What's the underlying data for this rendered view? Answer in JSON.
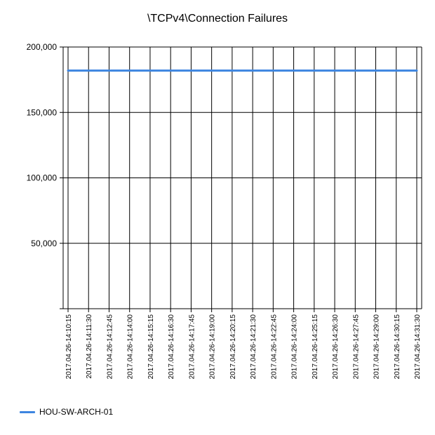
{
  "chart_data": {
    "type": "line",
    "title": "\\TCPv4\\Connection Failures",
    "xlabel": "",
    "ylabel": "",
    "ylim": [
      0,
      200000
    ],
    "yticks": [
      0,
      50000,
      100000,
      150000,
      200000
    ],
    "ytick_labels": [
      "",
      "50,000",
      "100,000",
      "150,000",
      "200,000"
    ],
    "x": [
      "2017.04.26-14:10:15",
      "2017.04.26-14:11:30",
      "2017.04.26-14:12:45",
      "2017.04.26-14:14:00",
      "2017.04.26-14:15:15",
      "2017.04.26-14:16:30",
      "2017.04.26-14:17:45",
      "2017.04.26-14:19:00",
      "2017.04.26-14:20:15",
      "2017.04.26-14:21:30",
      "2017.04.26-14:22:45",
      "2017.04.26-14:24:00",
      "2017.04.26-14:25:15",
      "2017.04.26-14:26:30",
      "2017.04.26-14:27:45",
      "2017.04.26-14:29:00",
      "2017.04.26-14:30:15",
      "2017.04.26-14:31:30"
    ],
    "series": [
      {
        "name": "HOU-SW-ARCH-01",
        "color": "#3d85e0",
        "values": [
          182000,
          182000,
          182000,
          182000,
          182000,
          182000,
          182000,
          182000,
          182000,
          182000,
          182000,
          182000,
          182000,
          182000,
          182000,
          182000,
          182000,
          182000
        ]
      }
    ],
    "grid": true,
    "legend_position": "bottom-left"
  }
}
